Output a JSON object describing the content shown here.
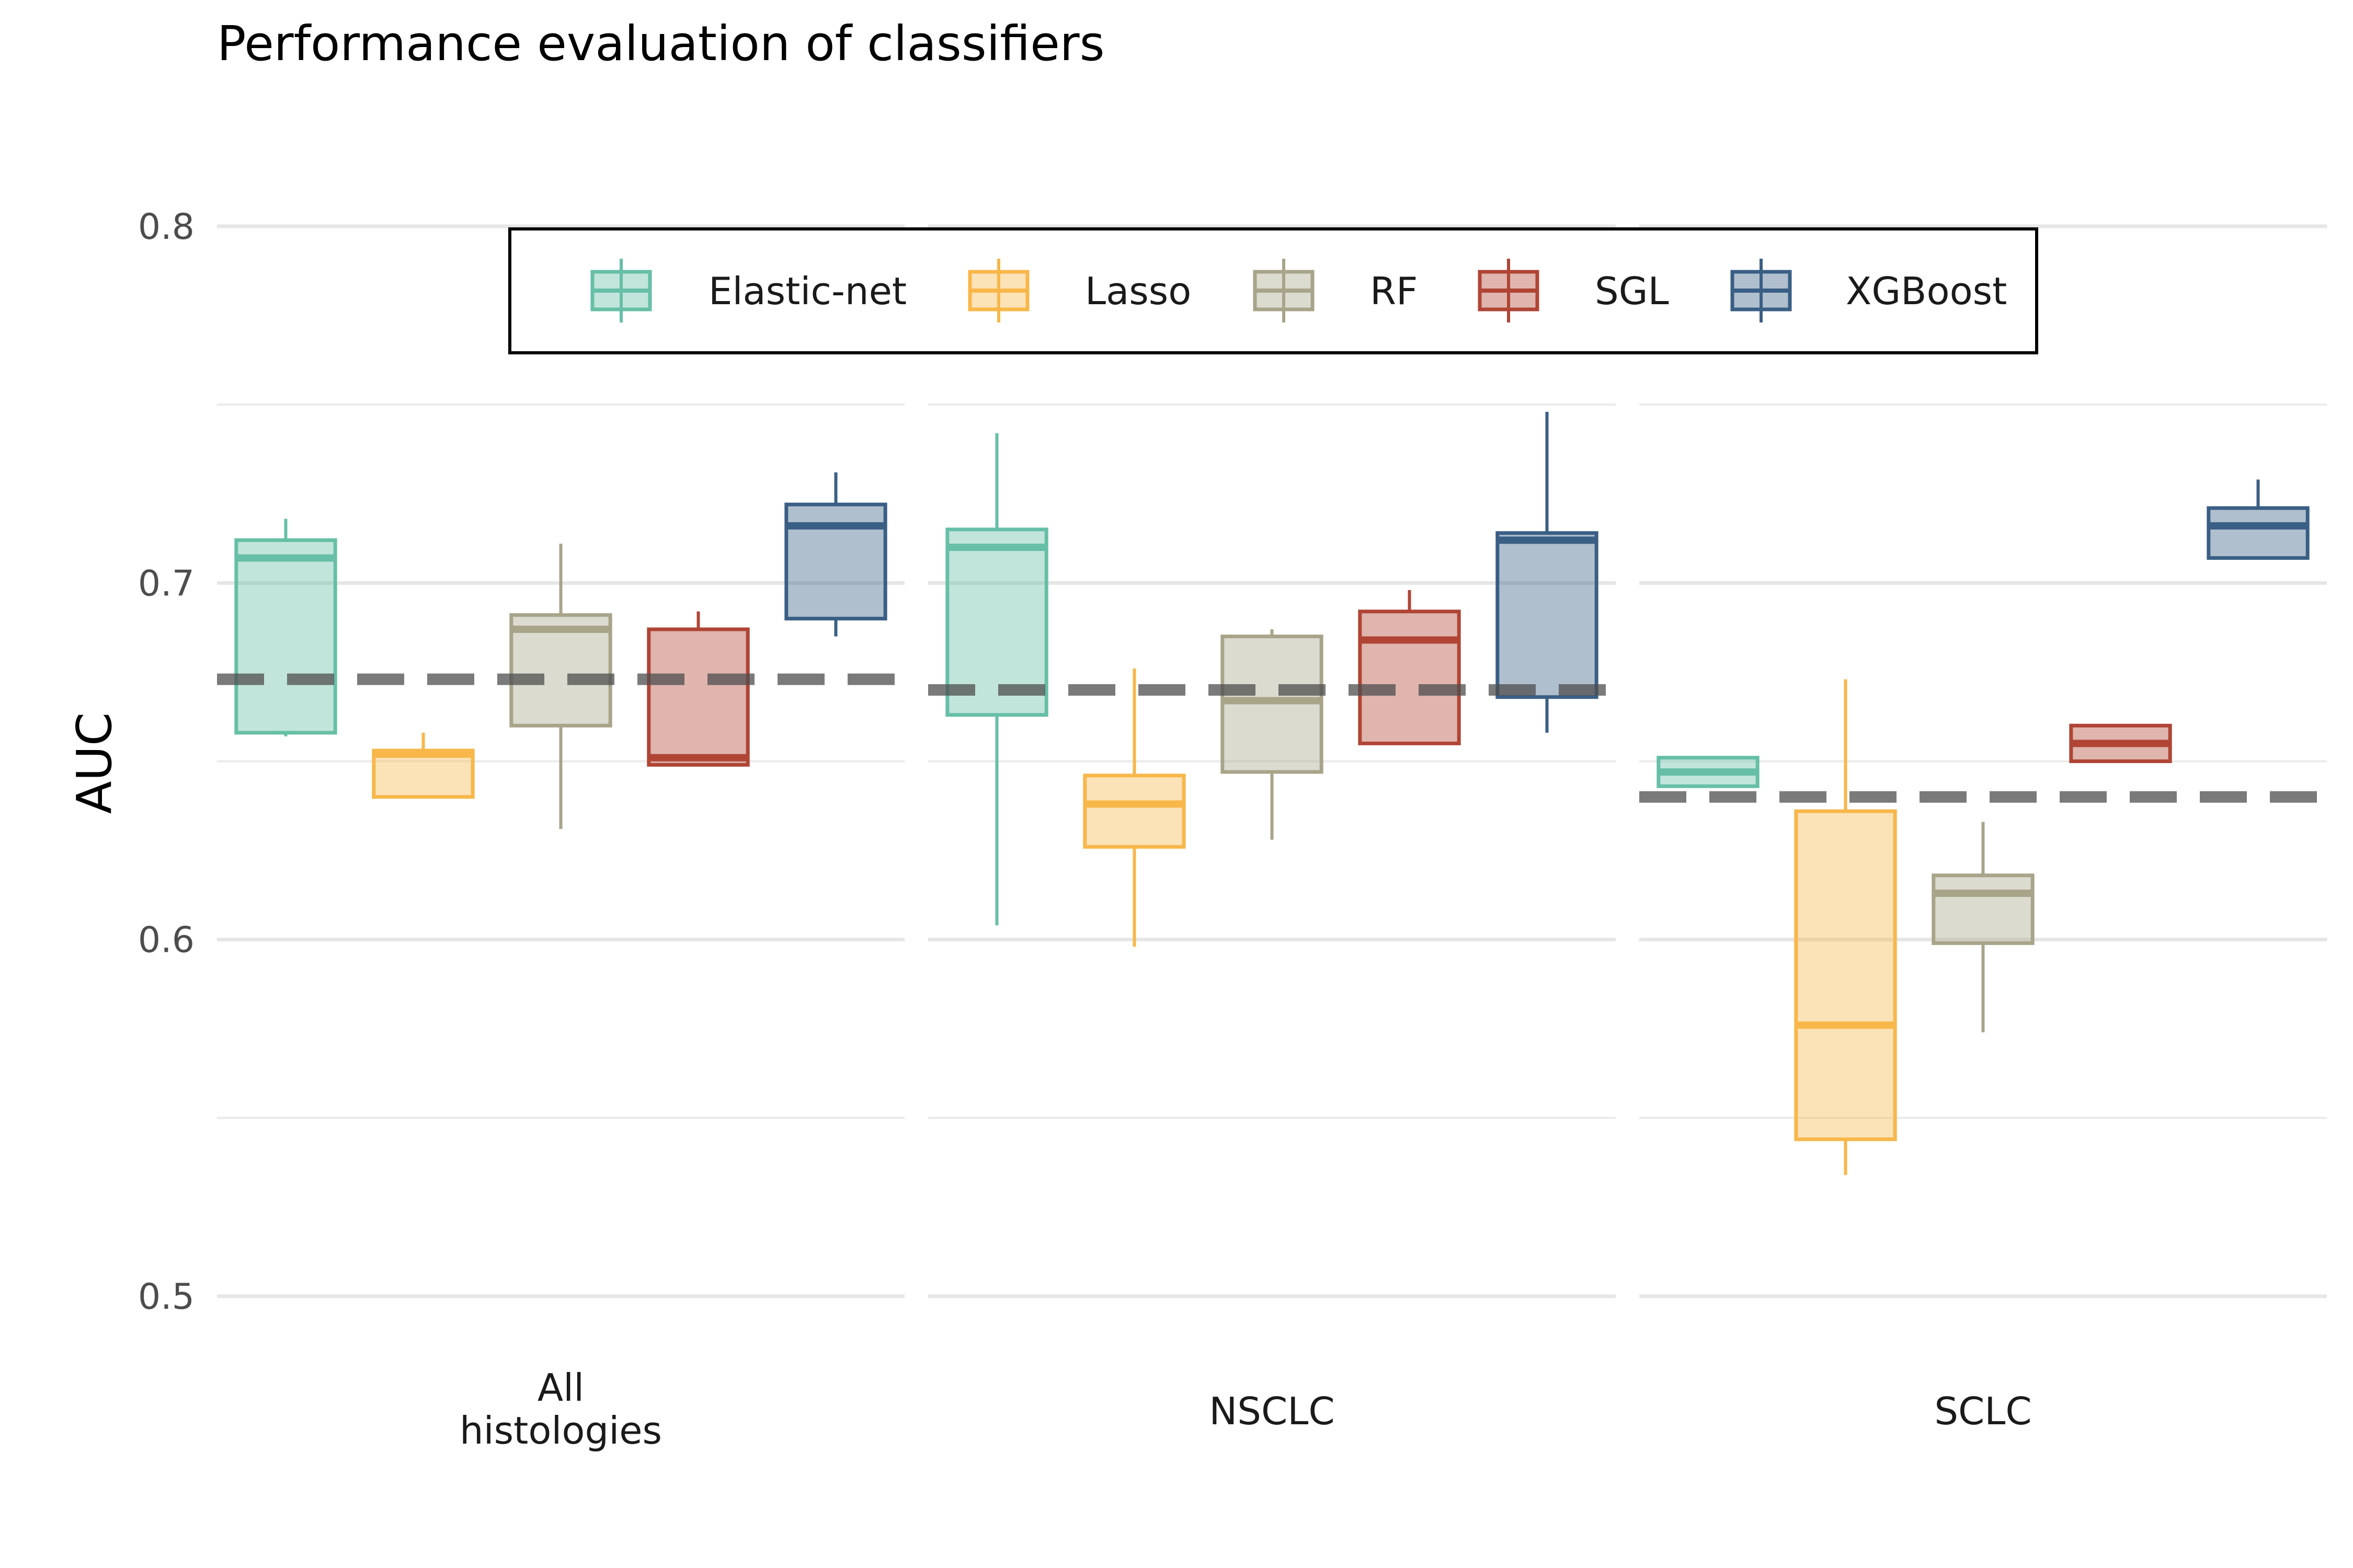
{
  "chart_data": {
    "type": "box",
    "title": "Performance evaluation of classifiers",
    "xlabel": "",
    "ylabel": "AUC",
    "ylim": [
      0.47,
      0.83
    ],
    "yticks": [
      0.5,
      0.6,
      0.7,
      0.8
    ],
    "ytick_labels": [
      "0.5",
      "0.6",
      "0.7",
      "0.8"
    ],
    "grid": true,
    "legend_position": "top",
    "categories": [
      "All\nhistologies",
      "NSCLC",
      "SCLC"
    ],
    "series": [
      {
        "name": "Elastic-net",
        "color": "#66bfa6",
        "boxes": [
          {
            "min": 0.657,
            "q1": 0.658,
            "median": 0.707,
            "q3": 0.712,
            "max": 0.718
          },
          {
            "min": 0.604,
            "q1": 0.663,
            "median": 0.71,
            "q3": 0.715,
            "max": 0.742
          },
          {
            "min": 0.643,
            "q1": 0.643,
            "median": 0.647,
            "q3": 0.651,
            "max": 0.651
          }
        ]
      },
      {
        "name": "Lasso",
        "color": "#f8b74a",
        "boxes": [
          {
            "min": 0.64,
            "q1": 0.64,
            "median": 0.652,
            "q3": 0.653,
            "max": 0.658
          },
          {
            "min": 0.598,
            "q1": 0.626,
            "median": 0.638,
            "q3": 0.646,
            "max": 0.676
          },
          {
            "min": 0.534,
            "q1": 0.544,
            "median": 0.576,
            "q3": 0.636,
            "max": 0.673
          }
        ]
      },
      {
        "name": "RF",
        "color": "#a8a48a",
        "boxes": [
          {
            "min": 0.631,
            "q1": 0.66,
            "median": 0.687,
            "q3": 0.691,
            "max": 0.711
          },
          {
            "min": 0.628,
            "q1": 0.647,
            "median": 0.667,
            "q3": 0.685,
            "max": 0.687
          },
          {
            "min": 0.574,
            "q1": 0.599,
            "median": 0.613,
            "q3": 0.618,
            "max": 0.633
          }
        ]
      },
      {
        "name": "SGL",
        "color": "#b04535",
        "boxes": [
          {
            "min": 0.649,
            "q1": 0.649,
            "median": 0.651,
            "q3": 0.687,
            "max": 0.692
          },
          {
            "min": 0.655,
            "q1": 0.655,
            "median": 0.684,
            "q3": 0.692,
            "max": 0.698
          },
          {
            "min": 0.65,
            "q1": 0.65,
            "median": 0.655,
            "q3": 0.66,
            "max": 0.66
          }
        ]
      },
      {
        "name": "XGBoost",
        "color": "#3a5f85",
        "boxes": [
          {
            "min": 0.685,
            "q1": 0.69,
            "median": 0.716,
            "q3": 0.722,
            "max": 0.731
          },
          {
            "min": 0.658,
            "q1": 0.668,
            "median": 0.712,
            "q3": 0.714,
            "max": 0.748
          },
          {
            "min": 0.707,
            "q1": 0.707,
            "median": 0.716,
            "q3": 0.721,
            "max": 0.729
          }
        ]
      }
    ],
    "reference_lines": [
      0.673,
      0.67,
      0.64
    ]
  }
}
